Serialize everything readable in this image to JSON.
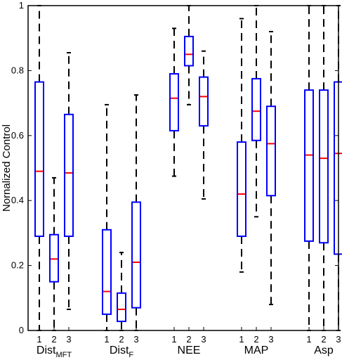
{
  "chart_data": {
    "type": "boxplot",
    "title": "",
    "xlabel": "",
    "ylabel": "Nornalized Control",
    "ylim": [
      0,
      1
    ],
    "yticks": [
      "0",
      "0.2",
      "0.4",
      "0.6",
      "0.8",
      "1"
    ],
    "grid": false,
    "colors": {
      "box": "#0000ff",
      "median": "#ff0000",
      "whisker": "#000000",
      "axis": "#000000"
    },
    "groups": [
      {
        "label_main": "Dist",
        "label_sub": "MFT",
        "boxes": [
          {
            "label": "1",
            "whisker_low": 0.0,
            "q1": 0.29,
            "median": 0.49,
            "q3": 0.765,
            "whisker_high": 1.0
          },
          {
            "label": "2",
            "whisker_low": 0.0,
            "q1": 0.15,
            "median": 0.22,
            "q3": 0.295,
            "whisker_high": 0.47
          },
          {
            "label": "3",
            "whisker_low": 0.065,
            "q1": 0.29,
            "median": 0.485,
            "q3": 0.665,
            "whisker_high": 0.855
          }
        ]
      },
      {
        "label_main": "Dist",
        "label_sub": "F",
        "boxes": [
          {
            "label": "1",
            "whisker_low": 0.0,
            "q1": 0.05,
            "median": 0.12,
            "q3": 0.31,
            "whisker_high": 0.695
          },
          {
            "label": "2",
            "whisker_low": 0.0,
            "q1": 0.028,
            "median": 0.065,
            "q3": 0.115,
            "whisker_high": 0.24
          },
          {
            "label": "3",
            "whisker_low": 0.0,
            "q1": 0.07,
            "median": 0.21,
            "q3": 0.395,
            "whisker_high": 0.725
          }
        ]
      },
      {
        "label_main": "NEE",
        "label_sub": "",
        "boxes": [
          {
            "label": "1",
            "whisker_low": 0.475,
            "q1": 0.615,
            "median": 0.715,
            "q3": 0.79,
            "whisker_high": 0.93
          },
          {
            "label": "2",
            "whisker_low": 0.695,
            "q1": 0.815,
            "median": 0.85,
            "q3": 0.905,
            "whisker_high": 1.0
          },
          {
            "label": "3",
            "whisker_low": 0.405,
            "q1": 0.63,
            "median": 0.72,
            "q3": 0.78,
            "whisker_high": 0.86
          }
        ]
      },
      {
        "label_main": "MAP",
        "label_sub": "",
        "boxes": [
          {
            "label": "1",
            "whisker_low": 0.18,
            "q1": 0.29,
            "median": 0.42,
            "q3": 0.58,
            "whisker_high": 0.96
          },
          {
            "label": "2",
            "whisker_low": 0.35,
            "q1": 0.585,
            "median": 0.675,
            "q3": 0.775,
            "whisker_high": 1.0
          },
          {
            "label": "3",
            "whisker_low": 0.08,
            "q1": 0.415,
            "median": 0.575,
            "q3": 0.69,
            "whisker_high": 0.92
          }
        ]
      },
      {
        "label_main": "Asp",
        "label_sub": "",
        "boxes": [
          {
            "label": "1",
            "whisker_low": 0.0,
            "q1": 0.275,
            "median": 0.54,
            "q3": 0.74,
            "whisker_high": 1.0
          },
          {
            "label": "2",
            "whisker_low": 0.0,
            "q1": 0.27,
            "median": 0.53,
            "q3": 0.74,
            "whisker_high": 1.0
          },
          {
            "label": "3",
            "whisker_low": 0.0,
            "q1": 0.235,
            "median": 0.545,
            "q3": 0.765,
            "whisker_high": 1.0
          }
        ]
      }
    ]
  }
}
